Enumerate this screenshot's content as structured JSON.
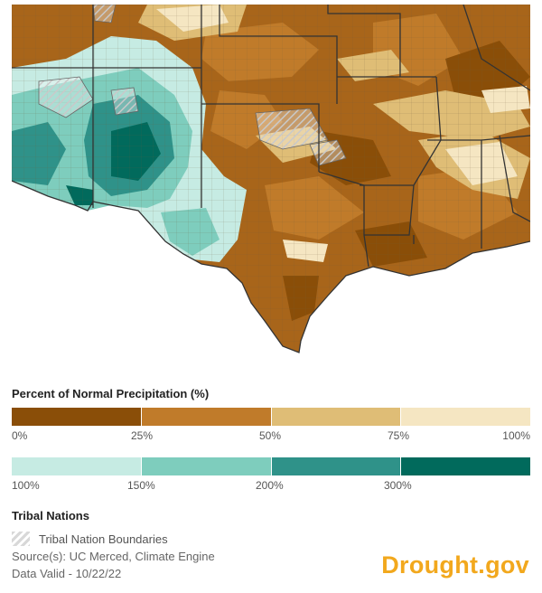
{
  "legend": {
    "title": "Percent of Normal Precipitation (%)",
    "dry_colors": [
      "#8a4e08",
      "#c07b2a",
      "#dfbd76",
      "#f5e6c2"
    ],
    "dry_ticks": [
      "0%",
      "25%",
      "50%",
      "75%",
      "100%"
    ],
    "wet_colors": [
      "#c6ebe3",
      "#7ecdbd",
      "#2f9289",
      "#016a5c"
    ],
    "wet_ticks": [
      "100%",
      "150%",
      "200%",
      "300%"
    ]
  },
  "tribal": {
    "title": "Tribal Nations",
    "boundaries_label": "Tribal Nation Boundaries"
  },
  "source": "Source(s): UC Merced, Climate Engine",
  "data_valid": "Data Valid - 10/22/22",
  "brand": "Drought.gov"
}
